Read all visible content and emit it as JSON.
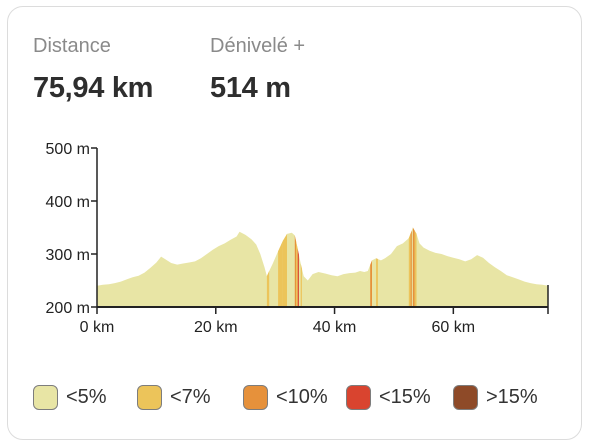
{
  "stats": {
    "distance_label": "Distance",
    "distance_value": "75,94 km",
    "elevation_label": "Dénivelé +",
    "elevation_value": "514 m"
  },
  "legend": [
    {
      "label": "<5%",
      "color": "#e8e5a5"
    },
    {
      "label": "<7%",
      "color": "#ecc45a"
    },
    {
      "label": "<10%",
      "color": "#e6913b"
    },
    {
      "label": "<15%",
      "color": "#d9442f"
    },
    {
      "label": ">15%",
      "color": "#8e4a28"
    }
  ],
  "chart_data": {
    "type": "area",
    "xlim": [
      0,
      75.94
    ],
    "ylim": [
      200,
      500
    ],
    "x_ticks": [
      0,
      20,
      40,
      60
    ],
    "x_tick_labels": [
      "0 km",
      "20 km",
      "40 km",
      "60 km"
    ],
    "y_ticks": [
      200,
      300,
      400,
      500
    ],
    "y_tick_labels": [
      "200 m",
      "300 m",
      "400 m",
      "500 m"
    ],
    "profile": [
      [
        0,
        240
      ],
      [
        1,
        242
      ],
      [
        2,
        243
      ],
      [
        3,
        245
      ],
      [
        4,
        248
      ],
      [
        5,
        252
      ],
      [
        6,
        256
      ],
      [
        7,
        259
      ],
      [
        8,
        265
      ],
      [
        9,
        274
      ],
      [
        10,
        284
      ],
      [
        10.8,
        295
      ],
      [
        11.5,
        290
      ],
      [
        12.5,
        283
      ],
      [
        13.5,
        280
      ],
      [
        14.5,
        282
      ],
      [
        15.5,
        284
      ],
      [
        16.5,
        286
      ],
      [
        17.5,
        292
      ],
      [
        18.5,
        300
      ],
      [
        19.5,
        308
      ],
      [
        20.5,
        315
      ],
      [
        21.5,
        320
      ],
      [
        22.5,
        327
      ],
      [
        23.5,
        333
      ],
      [
        24,
        342
      ],
      [
        25,
        336
      ],
      [
        26,
        328
      ],
      [
        26.8,
        318
      ],
      [
        27.5,
        300
      ],
      [
        28.2,
        275
      ],
      [
        28.6,
        258
      ],
      [
        29,
        268
      ],
      [
        29.6,
        282
      ],
      [
        30.5,
        305
      ],
      [
        31.3,
        325
      ],
      [
        32,
        338
      ],
      [
        32.8,
        340
      ],
      [
        33.3,
        335
      ],
      [
        33.8,
        310
      ],
      [
        34.3,
        282
      ],
      [
        34.8,
        258
      ],
      [
        35.5,
        250
      ],
      [
        36.3,
        262
      ],
      [
        37.3,
        266
      ],
      [
        38.5,
        263
      ],
      [
        39.5,
        260
      ],
      [
        40.5,
        258
      ],
      [
        41.5,
        262
      ],
      [
        42.5,
        264
      ],
      [
        43.5,
        265
      ],
      [
        44.3,
        268
      ],
      [
        45,
        266
      ],
      [
        45.6,
        268
      ],
      [
        46.3,
        288
      ],
      [
        47,
        292
      ],
      [
        47.8,
        288
      ],
      [
        48.5,
        292
      ],
      [
        49.5,
        300
      ],
      [
        50.5,
        315
      ],
      [
        51.5,
        320
      ],
      [
        52.5,
        330
      ],
      [
        53.2,
        350
      ],
      [
        53.8,
        338
      ],
      [
        54.3,
        320
      ],
      [
        55,
        312
      ],
      [
        56,
        306
      ],
      [
        57,
        302
      ],
      [
        58,
        300
      ],
      [
        59,
        296
      ],
      [
        60,
        293
      ],
      [
        61,
        290
      ],
      [
        62,
        286
      ],
      [
        63,
        290
      ],
      [
        64,
        298
      ],
      [
        65,
        293
      ],
      [
        66,
        283
      ],
      [
        67,
        275
      ],
      [
        68,
        268
      ],
      [
        69,
        260
      ],
      [
        70,
        256
      ],
      [
        71,
        252
      ],
      [
        72,
        248
      ],
      [
        73,
        245
      ],
      [
        74,
        243
      ],
      [
        75,
        242
      ],
      [
        75.94,
        240
      ]
    ],
    "slope_bands": [
      {
        "from": 28.6,
        "to": 29.0,
        "category": "<7%"
      },
      {
        "from": 30.5,
        "to": 31.3,
        "category": "<7%"
      },
      {
        "from": 31.3,
        "to": 32.0,
        "category": "<7%"
      },
      {
        "from": 33.3,
        "to": 33.5,
        "category": "<10%"
      },
      {
        "from": 33.5,
        "to": 33.8,
        "category": "<7%"
      },
      {
        "from": 33.8,
        "to": 34.0,
        "category": "<15%"
      },
      {
        "from": 34.3,
        "to": 34.5,
        "category": "<7%"
      },
      {
        "from": 46.0,
        "to": 46.3,
        "category": "<10%"
      },
      {
        "from": 47.0,
        "to": 47.3,
        "category": "<7%"
      },
      {
        "from": 52.5,
        "to": 52.8,
        "category": "<7%"
      },
      {
        "from": 52.8,
        "to": 53.0,
        "category": "<10%"
      },
      {
        "from": 53.2,
        "to": 53.5,
        "category": "<10%"
      },
      {
        "from": 53.5,
        "to": 53.8,
        "category": "<7%"
      }
    ]
  }
}
